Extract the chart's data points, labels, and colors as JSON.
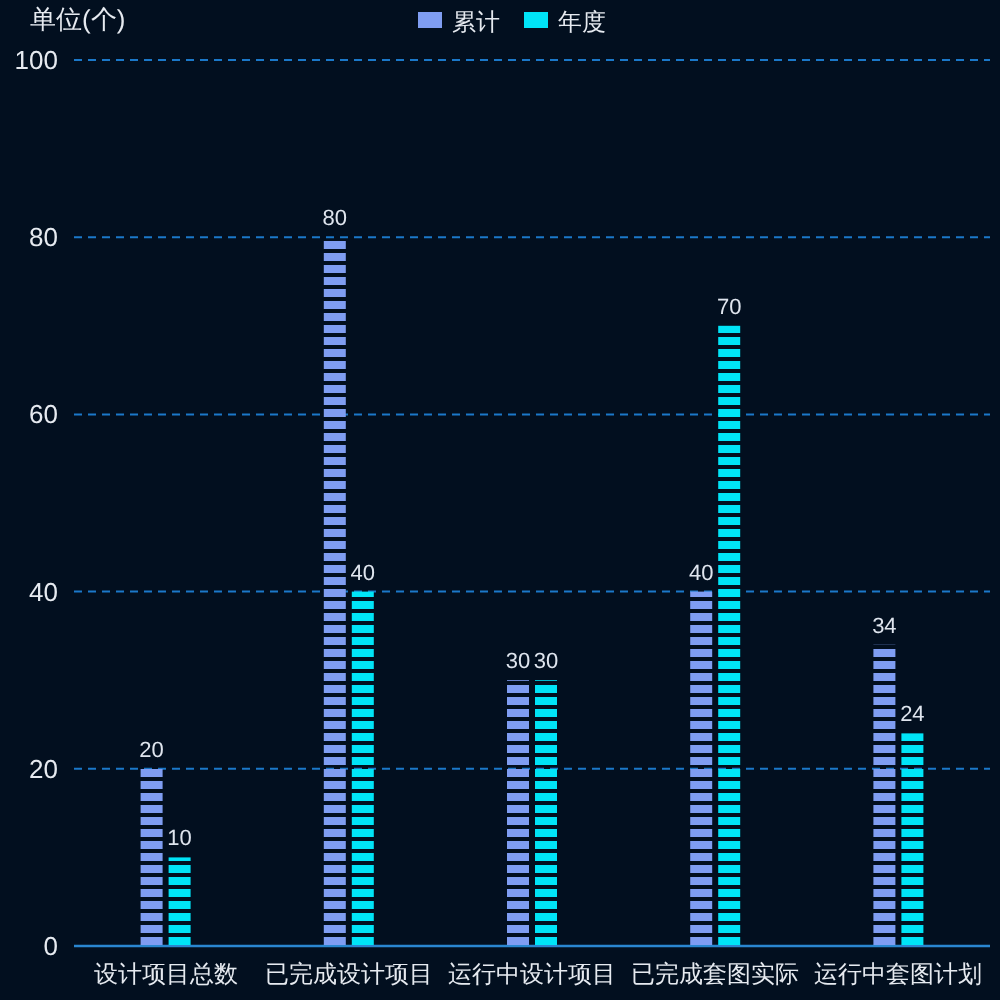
{
  "chart_data": {
    "type": "bar",
    "ylabel": "单位(个)",
    "categories": [
      "设计项目总数",
      "已完成设计项目",
      "运行中设计项目",
      "已完成套图实际",
      "运行中套图计划"
    ],
    "series": [
      {
        "name": "累计",
        "color": "#7f9df2",
        "values": [
          20,
          80,
          30,
          40,
          34
        ]
      },
      {
        "name": "年度",
        "color": "#00e4f7",
        "values": [
          10,
          40,
          30,
          70,
          24
        ]
      }
    ],
    "ylim": [
      0,
      100
    ],
    "yticks": [
      0,
      20,
      40,
      60,
      80,
      100
    ],
    "grid": "y",
    "legend": "top",
    "data_labels": true
  }
}
